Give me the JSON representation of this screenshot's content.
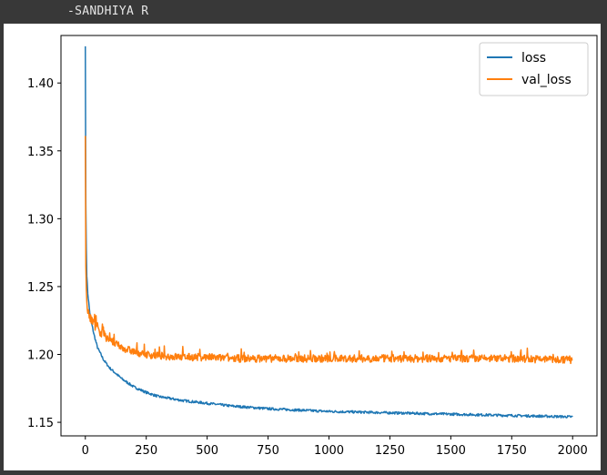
{
  "caption": "-SANDHIYA R",
  "chart_data": {
    "type": "line",
    "title": "",
    "xlabel": "",
    "ylabel": "",
    "xlim": [
      -100,
      2100
    ],
    "ylim": [
      1.14,
      1.435
    ],
    "x_ticks": [
      0,
      250,
      500,
      750,
      1000,
      1250,
      1500,
      1750,
      2000
    ],
    "x_tick_labels": [
      "0",
      "250",
      "500",
      "750",
      "1000",
      "1250",
      "1500",
      "1750",
      "2000"
    ],
    "y_ticks": [
      1.15,
      1.2,
      1.25,
      1.3,
      1.35,
      1.4
    ],
    "y_tick_labels": [
      "1.15",
      "1.20",
      "1.25",
      "1.30",
      "1.35",
      "1.40"
    ],
    "grid": false,
    "legend_position": "top-right",
    "series": [
      {
        "name": "loss",
        "color": "#1f77b4",
        "x": [
          0,
          2,
          5,
          10,
          20,
          35,
          50,
          75,
          100,
          150,
          200,
          250,
          300,
          400,
          500,
          600,
          750,
          1000,
          1250,
          1500,
          1750,
          2000
        ],
        "values": [
          1.427,
          1.31,
          1.262,
          1.245,
          1.228,
          1.215,
          1.205,
          1.196,
          1.19,
          1.182,
          1.176,
          1.172,
          1.169,
          1.166,
          1.164,
          1.162,
          1.16,
          1.158,
          1.157,
          1.156,
          1.155,
          1.154
        ]
      },
      {
        "name": "val_loss",
        "color": "#ff7f0e",
        "x": [
          0,
          2,
          5,
          10,
          20,
          35,
          50,
          75,
          100,
          150,
          200,
          250,
          300,
          400,
          500,
          600,
          750,
          1000,
          1250,
          1500,
          1750,
          2000
        ],
        "values": [
          1.361,
          1.265,
          1.24,
          1.232,
          1.227,
          1.222,
          1.218,
          1.214,
          1.21,
          1.205,
          1.202,
          1.2,
          1.199,
          1.198,
          1.198,
          1.197,
          1.197,
          1.197,
          1.197,
          1.197,
          1.197,
          1.196
        ]
      }
    ]
  }
}
